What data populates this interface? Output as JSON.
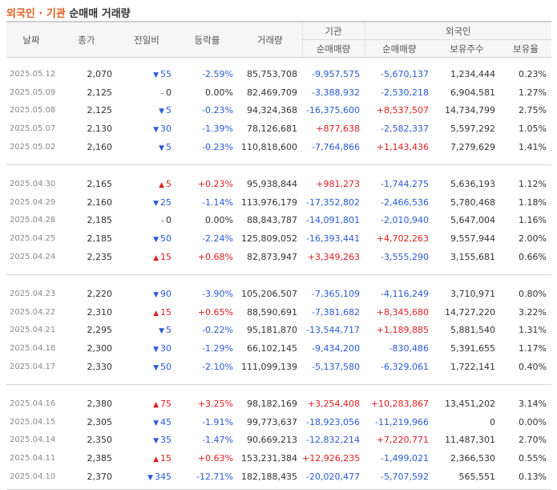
{
  "title": {
    "highlight": "외국인 · 기관",
    "rest": "순매매 거래량"
  },
  "headers": {
    "date": "날짜",
    "close": "종가",
    "change": "전일비",
    "rate": "등락률",
    "volume": "거래량",
    "inst_group": "기관",
    "foreign_group": "외국인",
    "inst_net": "순매매량",
    "foreign_net": "순매매량",
    "foreign_hold": "보유주수",
    "foreign_ratio": "보유율"
  },
  "groups": [
    {
      "rows": [
        {
          "date": "2025.05.12",
          "close": "2,070",
          "dir": "down",
          "change": "55",
          "rate": "-2.59%",
          "volume": "85,753,708",
          "inst": "-9,957,575",
          "foreign": "-5,670,137",
          "hold": "1,234,444",
          "ratio": "0.23%"
        },
        {
          "date": "2025.05.09",
          "close": "2,125",
          "dir": "flat",
          "change": "0",
          "rate": "0.00%",
          "volume": "82,469,709",
          "inst": "-3,388,932",
          "foreign": "-2,530,218",
          "hold": "6,904,581",
          "ratio": "1.27%"
        },
        {
          "date": "2025.05.08",
          "close": "2,125",
          "dir": "down",
          "change": "5",
          "rate": "-0.23%",
          "volume": "94,324,368",
          "inst": "-16,375,600",
          "foreign": "+8,537,507",
          "hold": "14,734,799",
          "ratio": "2.75%"
        },
        {
          "date": "2025.05.07",
          "close": "2,130",
          "dir": "down",
          "change": "30",
          "rate": "-1.39%",
          "volume": "78,126,681",
          "inst": "+877,638",
          "foreign": "-2,582,337",
          "hold": "5,597,292",
          "ratio": "1.05%"
        },
        {
          "date": "2025.05.02",
          "close": "2,160",
          "dir": "down",
          "change": "5",
          "rate": "-0.23%",
          "volume": "110,818,600",
          "inst": "-7,764,866",
          "foreign": "+1,143,436",
          "hold": "7,279,629",
          "ratio": "1.41%"
        }
      ]
    },
    {
      "rows": [
        {
          "date": "2025.04.30",
          "close": "2,165",
          "dir": "up",
          "change": "5",
          "rate": "+0.23%",
          "volume": "95,938,844",
          "inst": "+981,273",
          "foreign": "-1,744,275",
          "hold": "5,636,193",
          "ratio": "1.12%"
        },
        {
          "date": "2025.04.29",
          "close": "2,160",
          "dir": "down",
          "change": "25",
          "rate": "-1.14%",
          "volume": "113,976,179",
          "inst": "-17,352,802",
          "foreign": "-2,466,536",
          "hold": "5,780,468",
          "ratio": "1.18%"
        },
        {
          "date": "2025.04.28",
          "close": "2,185",
          "dir": "flat",
          "change": "0",
          "rate": "0.00%",
          "volume": "88,843,787",
          "inst": "-14,091,801",
          "foreign": "-2,010,940",
          "hold": "5,647,004",
          "ratio": "1.16%"
        },
        {
          "date": "2025.04.25",
          "close": "2,185",
          "dir": "down",
          "change": "50",
          "rate": "-2.24%",
          "volume": "125,809,052",
          "inst": "-16,393,441",
          "foreign": "+4,702,263",
          "hold": "9,557,944",
          "ratio": "2.00%"
        },
        {
          "date": "2025.04.24",
          "close": "2,235",
          "dir": "up",
          "change": "15",
          "rate": "+0.68%",
          "volume": "82,873,947",
          "inst": "+3,349,263",
          "foreign": "-3,555,290",
          "hold": "3,155,681",
          "ratio": "0.66%"
        }
      ]
    },
    {
      "rows": [
        {
          "date": "2025.04.23",
          "close": "2,220",
          "dir": "down",
          "change": "90",
          "rate": "-3.90%",
          "volume": "105,206,507",
          "inst": "-7,365,109",
          "foreign": "-4,116,249",
          "hold": "3,710,971",
          "ratio": "0.80%"
        },
        {
          "date": "2025.04.22",
          "close": "2,310",
          "dir": "up",
          "change": "15",
          "rate": "+0.65%",
          "volume": "88,590,691",
          "inst": "-7,381,682",
          "foreign": "+8,345,680",
          "hold": "14,727,220",
          "ratio": "3.22%"
        },
        {
          "date": "2025.04.21",
          "close": "2,295",
          "dir": "down",
          "change": "5",
          "rate": "-0.22%",
          "volume": "95,181,870",
          "inst": "-13,544,717",
          "foreign": "+1,189,885",
          "hold": "5,881,540",
          "ratio": "1.31%"
        },
        {
          "date": "2025.04.18",
          "close": "2,300",
          "dir": "down",
          "change": "30",
          "rate": "-1.29%",
          "volume": "66,102,145",
          "inst": "-9,434,200",
          "foreign": "-830,486",
          "hold": "5,391,655",
          "ratio": "1.17%"
        },
        {
          "date": "2025.04.17",
          "close": "2,330",
          "dir": "down",
          "change": "50",
          "rate": "-2.10%",
          "volume": "111,099,139",
          "inst": "-5,137,580",
          "foreign": "-6,329,061",
          "hold": "1,722,141",
          "ratio": "0.40%"
        }
      ]
    },
    {
      "rows": [
        {
          "date": "2025.04.16",
          "close": "2,380",
          "dir": "up",
          "change": "75",
          "rate": "+3.25%",
          "volume": "98,182,169",
          "inst": "+3,254,408",
          "foreign": "+10,283,867",
          "hold": "13,451,202",
          "ratio": "3.14%"
        },
        {
          "date": "2025.04.15",
          "close": "2,305",
          "dir": "down",
          "change": "45",
          "rate": "-1.91%",
          "volume": "99,773,637",
          "inst": "-18,923,056",
          "foreign": "-11,219,966",
          "hold": "0",
          "ratio": "0.00%"
        },
        {
          "date": "2025.04.14",
          "close": "2,350",
          "dir": "down",
          "change": "35",
          "rate": "-1.47%",
          "volume": "90,669,213",
          "inst": "-12,832,214",
          "foreign": "+7,220,771",
          "hold": "11,487,301",
          "ratio": "2.70%"
        },
        {
          "date": "2025.04.11",
          "close": "2,385",
          "dir": "up",
          "change": "15",
          "rate": "+0.63%",
          "volume": "153,231,384",
          "inst": "+12,926,235",
          "foreign": "-1,499,021",
          "hold": "2,366,530",
          "ratio": "0.55%"
        },
        {
          "date": "2025.04.10",
          "close": "2,370",
          "dir": "down",
          "change": "345",
          "rate": "-12.71%",
          "volume": "182,188,435",
          "inst": "-20,020,477",
          "foreign": "-5,707,592",
          "hold": "565,551",
          "ratio": "0.13%"
        }
      ]
    }
  ]
}
